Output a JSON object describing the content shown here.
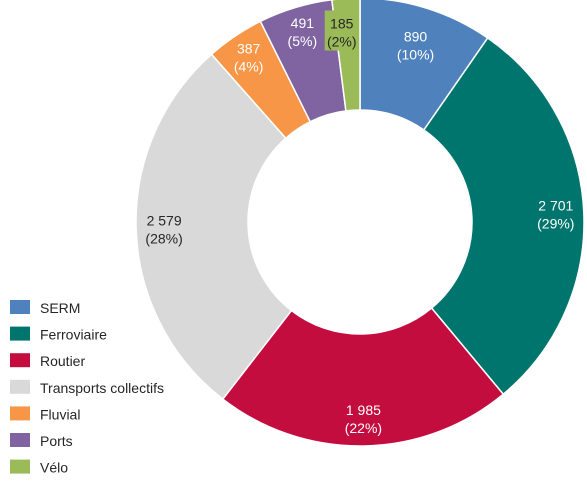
{
  "chart_data": {
    "type": "pie",
    "donut": true,
    "legend_position": "bottom-left",
    "title": "",
    "slices": [
      {
        "name": "SERM",
        "value": 890,
        "value_label": "890",
        "percent_label": "(10%)",
        "color": "#4f81bd"
      },
      {
        "name": "Ferroviaire",
        "value": 2701,
        "value_label": "2 701",
        "percent_label": "(29%)",
        "color": "#00756d"
      },
      {
        "name": "Routier",
        "value": 1985,
        "value_label": "1 985",
        "percent_label": "(22%)",
        "color": "#c30d3e"
      },
      {
        "name": "Transports collectifs",
        "value": 2579,
        "value_label": "2 579",
        "percent_label": "(28%)",
        "color": "#d9d9d9"
      },
      {
        "name": "Fluvial",
        "value": 387,
        "value_label": "387",
        "percent_label": "(4%)",
        "color": "#f79646"
      },
      {
        "name": "Ports",
        "value": 491,
        "value_label": "491",
        "percent_label": "(5%)",
        "color": "#8064a2"
      },
      {
        "name": "Vélo",
        "value": 185,
        "value_label": "185",
        "percent_label": "(2%)",
        "color": "#9bbb59"
      }
    ]
  }
}
